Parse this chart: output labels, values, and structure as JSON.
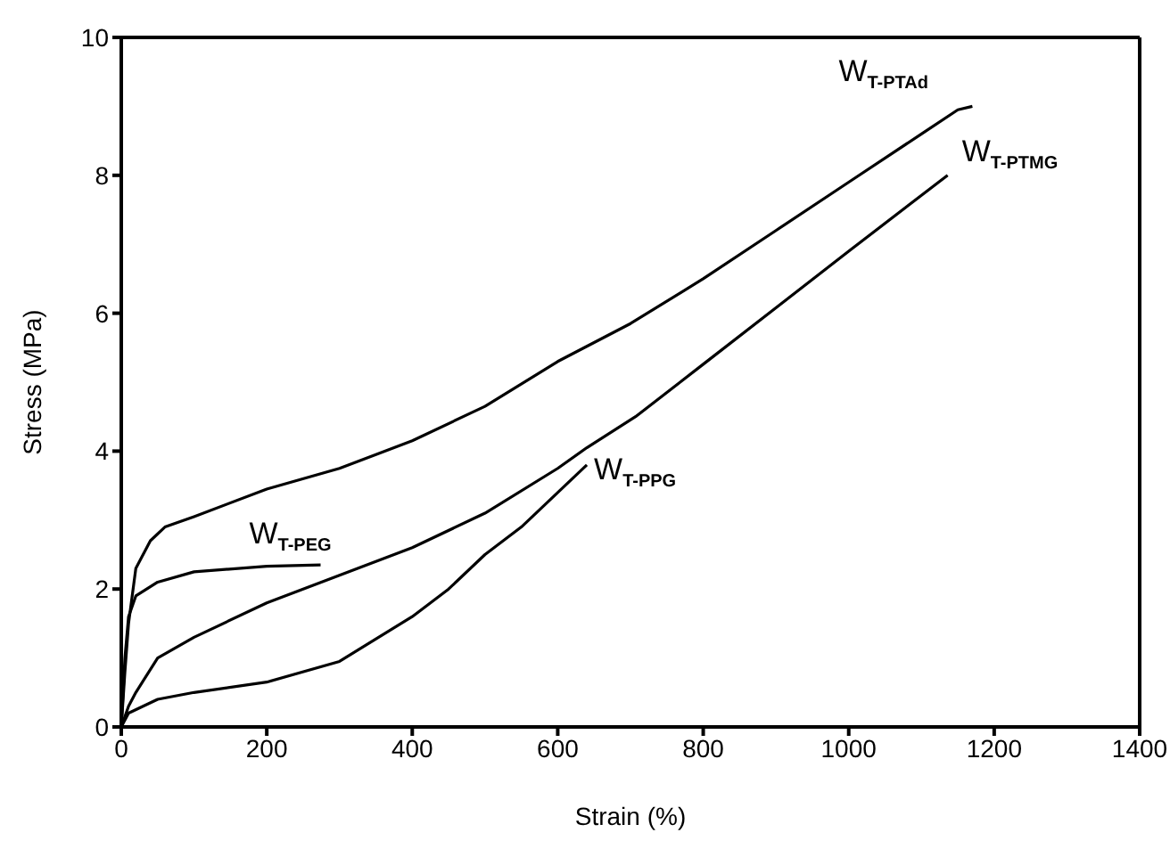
{
  "chart_data": {
    "type": "line",
    "xlabel": "Strain (%)",
    "ylabel": "Stress (MPa)",
    "xlim": [
      0,
      1400
    ],
    "xticks": [
      0,
      200,
      400,
      600,
      800,
      1000,
      1200,
      1400
    ],
    "ylim": [
      0,
      10
    ],
    "yticks": [
      0,
      2,
      4,
      6,
      8,
      10
    ],
    "marker": "none",
    "line_style": "solid",
    "series": [
      {
        "name": "W$_{T-PTAd}$",
        "color": "#000000",
        "x": [
          0,
          5,
          10,
          20,
          40,
          60,
          100,
          200,
          300,
          400,
          500,
          600,
          700,
          800,
          900,
          1000,
          1100,
          1150,
          1170
        ],
        "values": [
          0,
          0.8,
          1.5,
          2.3,
          2.7,
          2.9,
          3.05,
          3.45,
          3.75,
          4.15,
          4.65,
          5.3,
          5.85,
          6.5,
          7.2,
          7.9,
          8.6,
          8.95,
          9.0
        ]
      },
      {
        "name": "W$_{T-PTMG}$",
        "color": "#000000",
        "x": [
          0,
          10,
          20,
          50,
          100,
          200,
          300,
          400,
          500,
          600,
          640,
          707,
          800,
          900,
          1000,
          1136
        ],
        "values": [
          0,
          0.3,
          0.5,
          1.0,
          1.3,
          1.8,
          2.2,
          2.6,
          3.1,
          3.75,
          4.05,
          4.5,
          5.26,
          6.08,
          6.9,
          8.0
        ]
      },
      {
        "name": "W$_{T-PEG}$",
        "color": "#000000",
        "x": [
          0,
          5,
          10,
          20,
          50,
          100,
          200,
          274
        ],
        "values": [
          0,
          1.0,
          1.6,
          1.9,
          2.1,
          2.25,
          2.33,
          2.35
        ]
      },
      {
        "name": "W$_{T-PPG}$",
        "color": "#000000",
        "x": [
          0,
          10,
          50,
          100,
          200,
          300,
          400,
          450,
          500,
          550,
          600,
          640
        ],
        "values": [
          0,
          0.2,
          0.4,
          0.5,
          0.65,
          0.95,
          1.6,
          2.0,
          2.5,
          2.9,
          3.4,
          3.8
        ]
      }
    ]
  }
}
